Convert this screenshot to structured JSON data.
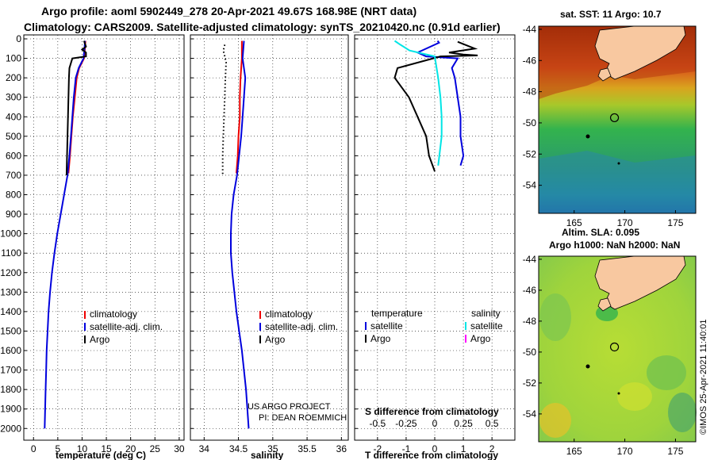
{
  "header": {
    "line1": "Argo profile: aoml 5902449_278 20-Apr-2021 49.67S 168.98E (NRT data)",
    "line2": "Climatology: CARS2009. Satellite-adjusted climatology: synTS_20210420.nc (0.91d earlier)"
  },
  "colors": {
    "climatology": "#ee0000",
    "satellite_adj": "#0000dd",
    "argo": "#000000",
    "satellite_salinity": "#00e5e5",
    "argo_salinity": "#ff00ff"
  },
  "chart_data": [
    {
      "type": "line",
      "name": "temperature-panel",
      "xlabel": "temperature (deg C)",
      "ylabel": "",
      "xlim": [
        -2,
        31
      ],
      "ylim": [
        2060,
        0
      ],
      "xticks": [
        "0",
        "5",
        "10",
        "15",
        "20",
        "25",
        "30"
      ],
      "yticks": [
        "0",
        "100",
        "200",
        "300",
        "400",
        "500",
        "600",
        "700",
        "800",
        "900",
        "1000",
        "1100",
        "1200",
        "1300",
        "1400",
        "1500",
        "1600",
        "1700",
        "1800",
        "1900",
        "2000"
      ],
      "legend": {
        "placement": "center-right",
        "entries": [
          "climatology",
          "satellite-adj. clim.",
          "Argo"
        ]
      },
      "series": [
        {
          "name": "climatology",
          "points": [
            [
              10.7,
              10
            ],
            [
              10.6,
              50
            ],
            [
              10.4,
              100
            ],
            [
              9.4,
              150
            ],
            [
              8.9,
              200
            ],
            [
              8.5,
              300
            ],
            [
              8.1,
              400
            ],
            [
              7.8,
              500
            ],
            [
              7.5,
              600
            ],
            [
              7.2,
              690
            ]
          ]
        },
        {
          "name": "satellite-adj. clim.",
          "points": [
            [
              10.6,
              10
            ],
            [
              10.5,
              50
            ],
            [
              10.3,
              100
            ],
            [
              9.3,
              150
            ],
            [
              8.7,
              200
            ],
            [
              8.3,
              300
            ],
            [
              8.0,
              400
            ],
            [
              7.7,
              500
            ],
            [
              7.4,
              600
            ],
            [
              7.0,
              700
            ],
            [
              6.3,
              800
            ],
            [
              5.6,
              900
            ],
            [
              4.9,
              1000
            ],
            [
              4.3,
              1100
            ],
            [
              3.8,
              1200
            ],
            [
              3.4,
              1300
            ],
            [
              3.1,
              1400
            ],
            [
              2.9,
              1500
            ],
            [
              2.7,
              1600
            ],
            [
              2.6,
              1700
            ],
            [
              2.5,
              1800
            ],
            [
              2.4,
              1900
            ],
            [
              2.3,
              2000
            ]
          ]
        },
        {
          "name": "Argo",
          "points": [
            [
              10.4,
              10
            ],
            [
              10.8,
              40
            ],
            [
              10.0,
              55
            ],
            [
              10.8,
              70
            ],
            [
              10.8,
              90
            ],
            [
              8.0,
              100
            ],
            [
              7.4,
              150
            ],
            [
              7.3,
              200
            ],
            [
              7.2,
              300
            ],
            [
              7.1,
              400
            ],
            [
              7.0,
              500
            ],
            [
              6.9,
              600
            ],
            [
              6.8,
              700
            ]
          ]
        }
      ]
    },
    {
      "type": "line",
      "name": "salinity-panel",
      "xlabel": "salinity",
      "xlim": [
        33.8,
        36.1
      ],
      "ylim": [
        2060,
        0
      ],
      "xticks": [
        "34",
        "34.5",
        "35",
        "35.5",
        "36"
      ],
      "legend": {
        "placement": "center-right",
        "entries": [
          "climatology",
          "satellite-adj. clim.",
          "Argo"
        ]
      },
      "annotation": [
        "US ARGO PROJECT",
        "PI: DEAN ROEMMICH"
      ],
      "series": [
        {
          "name": "climatology",
          "points": [
            [
              34.55,
              10
            ],
            [
              34.55,
              100
            ],
            [
              34.53,
              200
            ],
            [
              34.52,
              300
            ],
            [
              34.52,
              400
            ],
            [
              34.5,
              500
            ],
            [
              34.49,
              600
            ],
            [
              34.47,
              690
            ]
          ]
        },
        {
          "name": "satellite-adj. clim.",
          "points": [
            [
              34.58,
              10
            ],
            [
              34.56,
              100
            ],
            [
              34.6,
              200
            ],
            [
              34.58,
              300
            ],
            [
              34.56,
              400
            ],
            [
              34.54,
              500
            ],
            [
              34.51,
              600
            ],
            [
              34.48,
              700
            ],
            [
              34.43,
              800
            ],
            [
              34.4,
              900
            ],
            [
              34.39,
              1000
            ],
            [
              34.39,
              1100
            ],
            [
              34.41,
              1200
            ],
            [
              34.44,
              1300
            ],
            [
              34.47,
              1400
            ],
            [
              34.51,
              1500
            ],
            [
              34.55,
              1600
            ],
            [
              34.58,
              1700
            ],
            [
              34.61,
              1800
            ],
            [
              34.63,
              1900
            ],
            [
              34.65,
              2000
            ]
          ]
        },
        {
          "name": "Argo",
          "style": "dotted",
          "points": [
            [
              34.3,
              30
            ],
            [
              34.28,
              60
            ],
            [
              34.3,
              90
            ],
            [
              34.32,
              120
            ],
            [
              34.31,
              200
            ],
            [
              34.3,
              300
            ],
            [
              34.29,
              400
            ],
            [
              34.28,
              500
            ],
            [
              34.27,
              600
            ],
            [
              34.27,
              700
            ]
          ]
        }
      ]
    },
    {
      "type": "line",
      "name": "difference-panel",
      "xlabel": "T difference from climatology",
      "top_axis_label": "S difference from climatology",
      "xlim": [
        -2.8,
        2.8
      ],
      "top_xlim": [
        -0.7,
        0.7
      ],
      "ylim": [
        2060,
        0
      ],
      "xticks": [
        "-2",
        "-1",
        "0",
        "1",
        "2"
      ],
      "top_xticks": [
        "-0.5",
        "-0.25",
        "0",
        "0.25",
        "0.5"
      ],
      "legend": {
        "placement": "center",
        "col1": [
          "temperature",
          "satellite",
          "Argo"
        ],
        "col2": [
          "salinity",
          "satellite",
          "Argo"
        ]
      },
      "series": [
        {
          "name": "temperature satellite",
          "points": [
            [
              0.1,
              10
            ],
            [
              0.15,
              20
            ],
            [
              -0.6,
              70
            ],
            [
              -0.3,
              90
            ],
            [
              0.8,
              100
            ],
            [
              0.6,
              150
            ],
            [
              0.7,
              200
            ],
            [
              0.8,
              300
            ],
            [
              0.9,
              400
            ],
            [
              0.9,
              500
            ],
            [
              1.0,
              600
            ],
            [
              0.9,
              650
            ]
          ]
        },
        {
          "name": "temperature Argo",
          "points": [
            [
              0.8,
              15
            ],
            [
              1.4,
              50
            ],
            [
              0.5,
              70
            ],
            [
              1.0,
              80
            ],
            [
              1.5,
              85
            ],
            [
              0.2,
              90
            ],
            [
              -1.3,
              150
            ],
            [
              -1.4,
              200
            ],
            [
              -0.9,
              300
            ],
            [
              -0.6,
              400
            ],
            [
              -0.3,
              500
            ],
            [
              -0.2,
              600
            ],
            [
              0.0,
              680
            ]
          ]
        },
        {
          "name": "salinity satellite",
          "axis": "top",
          "points": [
            [
              -0.35,
              10
            ],
            [
              -0.3,
              30
            ],
            [
              -0.22,
              60
            ],
            [
              0.0,
              90
            ],
            [
              0.03,
              200
            ],
            [
              0.05,
              300
            ],
            [
              0.06,
              400
            ],
            [
              0.06,
              500
            ],
            [
              0.04,
              600
            ],
            [
              0.03,
              650
            ]
          ]
        },
        {
          "name": "salinity Argo",
          "axis": "top",
          "points": []
        }
      ]
    },
    {
      "type": "heatmap",
      "name": "sst-map",
      "title": "sat. SST: 11 Argo: 10.7",
      "subtitle": "Altim. SLA: 0.095",
      "xlim": [
        161.5,
        177
      ],
      "ylim": [
        -55.8,
        -43.8
      ],
      "xticks": [
        "165",
        "170",
        "175"
      ],
      "yticks": [
        "-44",
        "-46",
        "-48",
        "-50",
        "-52",
        "-54"
      ],
      "argo_position": {
        "lon": 168.98,
        "lat": -49.67
      }
    },
    {
      "type": "heatmap",
      "name": "sla-map",
      "title": "Argo h1000: NaN h2000: NaN",
      "xlim": [
        161.5,
        177
      ],
      "ylim": [
        -55.8,
        -43.8
      ],
      "xticks": [
        "165",
        "170",
        "175"
      ],
      "yticks": [
        "-44",
        "-46",
        "-48",
        "-50",
        "-52",
        "-54"
      ],
      "argo_position": {
        "lon": 168.98,
        "lat": -49.67
      }
    }
  ],
  "legend_labels": {
    "climatology": "climatology",
    "satellite_adj": "satellite-adj. clim.",
    "argo": "Argo",
    "temperature_head": "temperature",
    "salinity_head": "salinity",
    "satellite": "satellite"
  },
  "watermark": "©IMOS 25-Apr-2021 11:40:01"
}
